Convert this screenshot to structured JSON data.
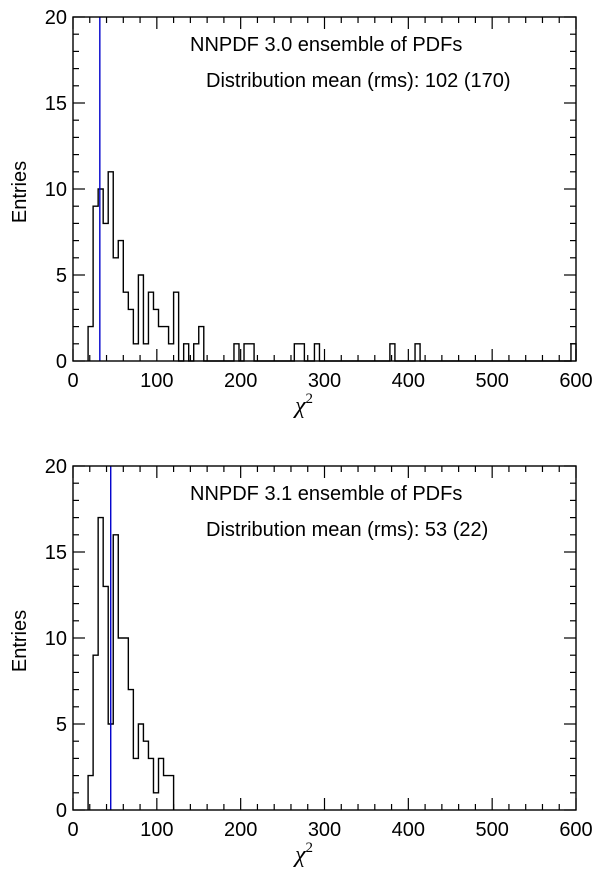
{
  "chart_data": [
    {
      "type": "histogram",
      "xlabel": {
        "symbol": "χ",
        "exponent": "2"
      },
      "ylabel": "Entries",
      "xlim": [
        0,
        600
      ],
      "ylim": [
        0,
        20
      ],
      "x_ticks": [
        "0",
        "100",
        "200",
        "300",
        "400",
        "500",
        "600"
      ],
      "y_ticks": [
        "0",
        "5",
        "10",
        "15",
        "20"
      ],
      "bin_width": 6,
      "annotations": [
        "NNPDF 3.0 ensemble of PDFs",
        "Distribution mean (rms): 102 (170)"
      ],
      "mean_line": {
        "x": 32,
        "color": "#0000cc"
      },
      "line_color": "#000000",
      "bins": [
        {
          "x": 18,
          "y": 2
        },
        {
          "x": 24,
          "y": 9
        },
        {
          "x": 30,
          "y": 10
        },
        {
          "x": 36,
          "y": 8
        },
        {
          "x": 42,
          "y": 11
        },
        {
          "x": 48,
          "y": 6
        },
        {
          "x": 54,
          "y": 7
        },
        {
          "x": 60,
          "y": 4
        },
        {
          "x": 66,
          "y": 3
        },
        {
          "x": 72,
          "y": 1
        },
        {
          "x": 78,
          "y": 5
        },
        {
          "x": 84,
          "y": 1
        },
        {
          "x": 90,
          "y": 4
        },
        {
          "x": 96,
          "y": 3
        },
        {
          "x": 102,
          "y": 2
        },
        {
          "x": 108,
          "y": 2
        },
        {
          "x": 114,
          "y": 1
        },
        {
          "x": 120,
          "y": 4
        },
        {
          "x": 126,
          "y": 0
        },
        {
          "x": 132,
          "y": 1
        },
        {
          "x": 138,
          "y": 0
        },
        {
          "x": 144,
          "y": 1
        },
        {
          "x": 150,
          "y": 2
        },
        {
          "x": 156,
          "y": 0
        },
        {
          "x": 192,
          "y": 1
        },
        {
          "x": 198,
          "y": 0
        },
        {
          "x": 204,
          "y": 1
        },
        {
          "x": 210,
          "y": 1
        },
        {
          "x": 216,
          "y": 0
        },
        {
          "x": 264,
          "y": 1
        },
        {
          "x": 270,
          "y": 1
        },
        {
          "x": 276,
          "y": 0
        },
        {
          "x": 288,
          "y": 1
        },
        {
          "x": 294,
          "y": 0
        },
        {
          "x": 378,
          "y": 1
        },
        {
          "x": 384,
          "y": 0
        },
        {
          "x": 408,
          "y": 1
        },
        {
          "x": 414,
          "y": 0
        },
        {
          "x": 594,
          "y": 1
        },
        {
          "x": 600,
          "y": 0
        }
      ]
    },
    {
      "type": "histogram",
      "xlabel": {
        "symbol": "χ",
        "exponent": "2"
      },
      "ylabel": "Entries",
      "xlim": [
        0,
        600
      ],
      "ylim": [
        0,
        20
      ],
      "x_ticks": [
        "0",
        "100",
        "200",
        "300",
        "400",
        "500",
        "600"
      ],
      "y_ticks": [
        "0",
        "5",
        "10",
        "15",
        "20"
      ],
      "bin_width": 6,
      "annotations": [
        "NNPDF 3.1 ensemble of PDFs",
        "Distribution mean (rms): 53 (22)"
      ],
      "mean_line": {
        "x": 45,
        "color": "#0000cc"
      },
      "line_color": "#000000",
      "bins": [
        {
          "x": 18,
          "y": 2
        },
        {
          "x": 24,
          "y": 9
        },
        {
          "x": 30,
          "y": 17
        },
        {
          "x": 36,
          "y": 13
        },
        {
          "x": 42,
          "y": 5
        },
        {
          "x": 48,
          "y": 16
        },
        {
          "x": 54,
          "y": 10
        },
        {
          "x": 60,
          "y": 10
        },
        {
          "x": 66,
          "y": 7
        },
        {
          "x": 72,
          "y": 3
        },
        {
          "x": 78,
          "y": 5
        },
        {
          "x": 84,
          "y": 4
        },
        {
          "x": 90,
          "y": 3
        },
        {
          "x": 96,
          "y": 1
        },
        {
          "x": 102,
          "y": 3
        },
        {
          "x": 108,
          "y": 2
        },
        {
          "x": 114,
          "y": 2
        },
        {
          "x": 120,
          "y": 0
        }
      ]
    }
  ]
}
